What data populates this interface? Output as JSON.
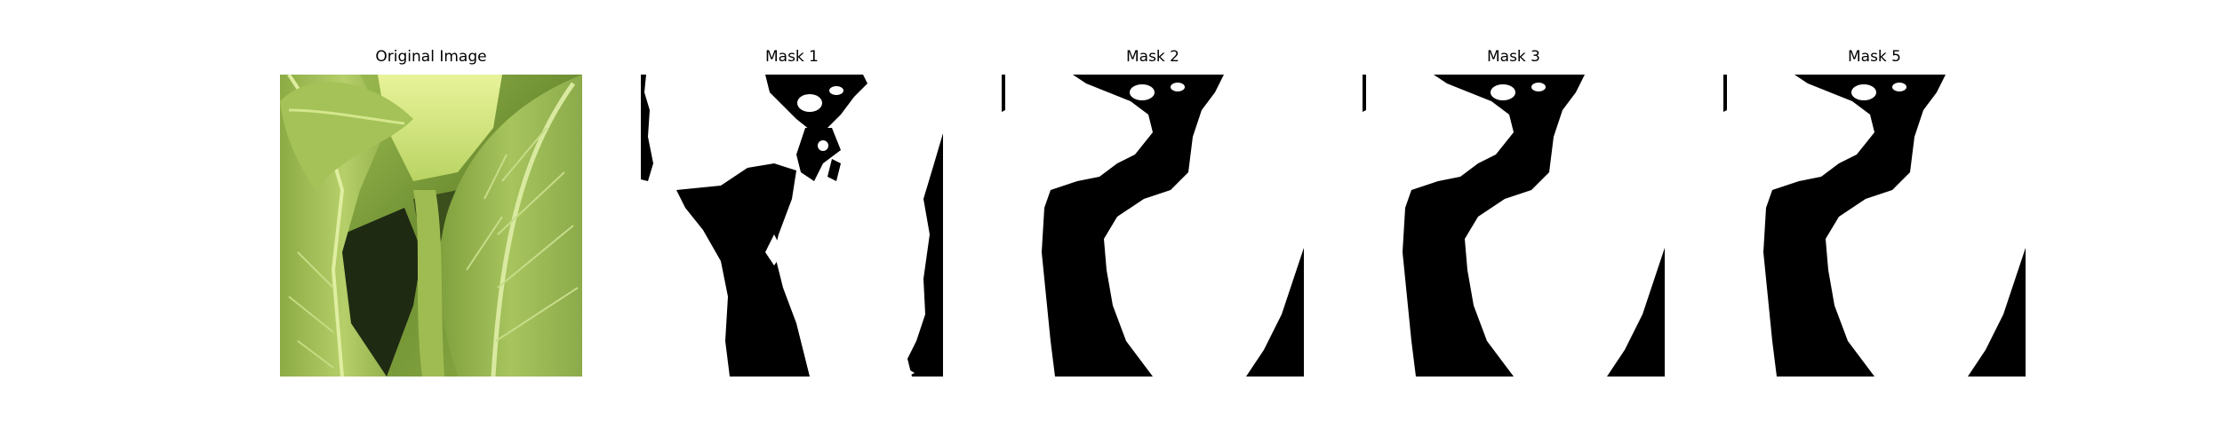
{
  "figure": {
    "panels": [
      {
        "title": "Original Image",
        "kind": "photo",
        "subject": "leaf-icon"
      },
      {
        "title": "Mask 1",
        "kind": "mask"
      },
      {
        "title": "Mask 2",
        "kind": "mask"
      },
      {
        "title": "Mask 3",
        "kind": "mask"
      },
      {
        "title": "Mask 5",
        "kind": "mask"
      }
    ],
    "colors": {
      "mask_foreground": "#ffffff",
      "mask_background": "#000000",
      "leaf_dark": "#5f7f2c",
      "leaf_mid": "#8fae45",
      "leaf_light": "#c9e07a",
      "leaf_bright": "#e7f28f",
      "shadow": "#1f2a12"
    }
  }
}
